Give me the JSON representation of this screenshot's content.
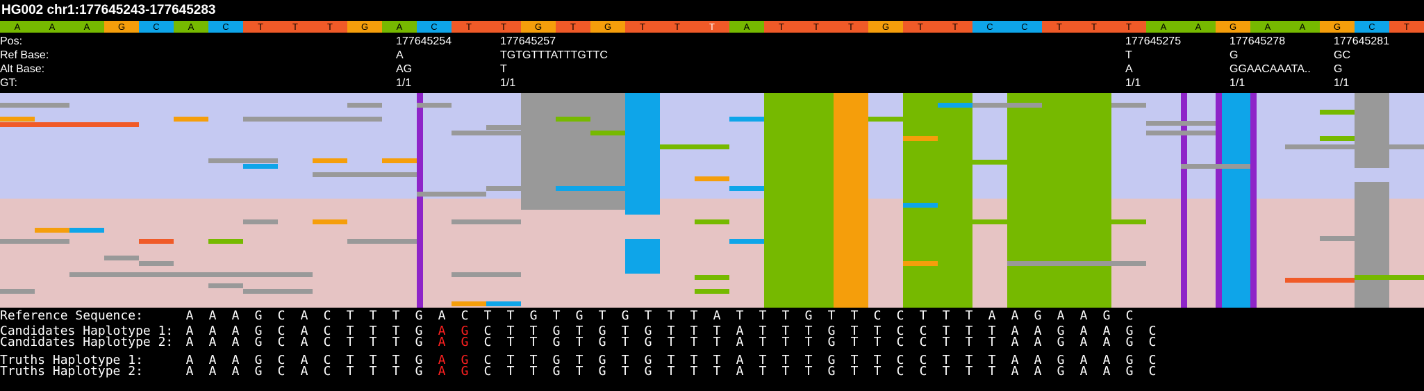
{
  "title": "HG002 chr1:177645243-177645283",
  "ref_bases": [
    "A",
    "A",
    "A",
    "G",
    "C",
    "A",
    "C",
    "T",
    "T",
    "T",
    "G",
    "A",
    "C",
    "T",
    "T",
    "G",
    "T",
    "G",
    "T",
    "T",
    "T",
    "A",
    "T",
    "T",
    "T",
    "G",
    "T",
    "T",
    "C",
    "C",
    "T",
    "T",
    "T",
    "A",
    "A",
    "G",
    "A",
    "A",
    "G",
    "C",
    "T"
  ],
  "ref_highlight_index": 20,
  "colors": {
    "A": "#76b900",
    "C": "#0ea5e9",
    "G": "#f59e0b",
    "T": "#f05a28",
    "N": "#999999",
    "ins": "#8e24c8",
    "hap1_bg": "#c5c9f2",
    "hap2_bg": "#e6c4c4",
    "gray": "#999999"
  },
  "variant_labels": [
    "Pos:",
    "Ref Base:",
    "Alt Base:",
    "GT:"
  ],
  "variants": [
    {
      "pos": "177645254",
      "ref": "A",
      "alt": "AG",
      "gt": "1/1"
    },
    {
      "pos": "177645257",
      "ref": "TGTGTTTATTTGTTC",
      "alt": "T",
      "gt": "1/1"
    },
    {
      "pos": "177645275",
      "ref": "T",
      "alt": "A",
      "gt": "1/1"
    },
    {
      "pos": "177645278",
      "ref": "G",
      "alt": "GGAACAAATA..",
      "gt": "1/1"
    },
    {
      "pos": "177645281",
      "ref": "GC",
      "alt": "G",
      "gt": "1/1"
    }
  ],
  "sequences": [
    {
      "label": "Reference Sequence:",
      "bases": [
        "A",
        "A",
        "A",
        "G",
        "C",
        "A",
        "C",
        "T",
        "T",
        "T",
        "G",
        "A",
        "C",
        "T",
        "T",
        "G",
        "T",
        "G",
        "T",
        "G",
        "T",
        "T",
        "T",
        "A",
        "T",
        "T",
        "T",
        "G",
        "T",
        "T",
        "C",
        "C",
        "T",
        "T",
        "T",
        "A",
        "A",
        "G",
        "A",
        "A",
        "G",
        "C"
      ],
      "highlight": []
    },
    {
      "label": "Candidates Haplotype 1:",
      "bases": [
        "A",
        "A",
        "A",
        "G",
        "C",
        "A",
        "C",
        "T",
        "T",
        "T",
        "G",
        "A",
        "G",
        "C",
        "T",
        "T",
        "G",
        "T",
        "G",
        "T",
        "G",
        "T",
        "T",
        "T",
        "A",
        "T",
        "T",
        "T",
        "G",
        "T",
        "T",
        "C",
        "C",
        "T",
        "T",
        "T",
        "A",
        "A",
        "G",
        "A",
        "A",
        "G",
        "C"
      ],
      "highlight": [
        11,
        12
      ]
    },
    {
      "label": "Candidates Haplotype 2:",
      "bases": [
        "A",
        "A",
        "A",
        "G",
        "C",
        "A",
        "C",
        "T",
        "T",
        "T",
        "G",
        "A",
        "G",
        "C",
        "T",
        "T",
        "G",
        "T",
        "G",
        "T",
        "G",
        "T",
        "T",
        "T",
        "A",
        "T",
        "T",
        "T",
        "G",
        "T",
        "T",
        "C",
        "C",
        "T",
        "T",
        "T",
        "A",
        "A",
        "G",
        "A",
        "A",
        "G",
        "C"
      ],
      "highlight": [
        11,
        12
      ]
    },
    {
      "label": "Truths Haplotype 1:",
      "bases": [
        "A",
        "A",
        "A",
        "G",
        "C",
        "A",
        "C",
        "T",
        "T",
        "T",
        "G",
        "A",
        "G",
        "C",
        "T",
        "T",
        "G",
        "T",
        "G",
        "T",
        "G",
        "T",
        "T",
        "T",
        "A",
        "T",
        "T",
        "T",
        "G",
        "T",
        "T",
        "C",
        "C",
        "T",
        "T",
        "T",
        "A",
        "A",
        "G",
        "A",
        "A",
        "G",
        "C"
      ],
      "highlight": [
        11,
        12
      ]
    },
    {
      "label": "Truths Haplotype 2:",
      "bases": [
        "A",
        "A",
        "A",
        "G",
        "C",
        "A",
        "C",
        "T",
        "T",
        "T",
        "G",
        "A",
        "G",
        "C",
        "T",
        "T",
        "G",
        "T",
        "G",
        "T",
        "G",
        "T",
        "T",
        "T",
        "A",
        "T",
        "T",
        "T",
        "G",
        "T",
        "T",
        "C",
        "C",
        "T",
        "T",
        "T",
        "A",
        "A",
        "G",
        "A",
        "A",
        "G",
        "C"
      ],
      "highlight": [
        11,
        12
      ]
    }
  ]
}
